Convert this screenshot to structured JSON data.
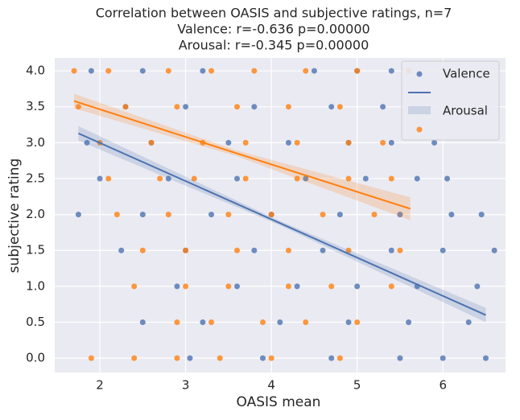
{
  "chart_data": {
    "type": "scatter",
    "title": "Correlation between OASIS and subjective ratings, n=7",
    "subtitle": [
      "Valence: r=-0.636 p=0.00000",
      "Arousal: r=-0.345 p=0.00000"
    ],
    "x_label": "OASIS mean",
    "y_label": "subjective rating",
    "xlim": [
      1.474,
      6.73
    ],
    "ylim": [
      -0.2,
      4.18
    ],
    "xticks": [
      2,
      3,
      4,
      5,
      6
    ],
    "yticks": [
      {
        "value": 0,
        "label": "0.0"
      },
      {
        "value": 0.5,
        "label": "0.5"
      },
      {
        "value": 1,
        "label": "1.0"
      },
      {
        "value": 1.5,
        "label": "1.5"
      },
      {
        "value": 2,
        "label": "2.0"
      },
      {
        "value": 2.5,
        "label": "2.5"
      },
      {
        "value": 3,
        "label": "3.0"
      },
      {
        "value": 3.5,
        "label": "3.5"
      },
      {
        "value": 4,
        "label": "4.0"
      }
    ],
    "grid": true,
    "legend": "upper right",
    "series": [
      {
        "name": "Valence",
        "color": "#4c72b0",
        "x": [
          1.9,
          2.5,
          3.2,
          4.5,
          5.0,
          5.4,
          2.3,
          3.0,
          3.8,
          4.7,
          5.3,
          1.85,
          2.6,
          3.5,
          4.2,
          4.9,
          5.4,
          5.9,
          2.0,
          2.8,
          3.6,
          4.4,
          5.1,
          5.7,
          6.05,
          1.75,
          2.5,
          3.3,
          4.0,
          4.8,
          5.5,
          6.1,
          6.45,
          2.25,
          3.0,
          3.8,
          4.6,
          5.4,
          6.0,
          6.6,
          2.9,
          3.6,
          4.3,
          5.0,
          5.7,
          6.4,
          2.5,
          3.2,
          4.1,
          4.9,
          5.6,
          6.3,
          3.05,
          3.9,
          4.7,
          5.5,
          6.0,
          6.5
        ],
        "y": [
          4,
          4,
          4,
          4,
          4,
          4,
          3.5,
          3.5,
          3.5,
          3.5,
          3.5,
          3,
          3,
          3,
          3,
          3,
          3,
          3,
          2.5,
          2.5,
          2.5,
          2.5,
          2.5,
          2.5,
          2.5,
          2,
          2,
          2,
          2,
          2,
          2,
          2,
          2,
          1.5,
          1.5,
          1.5,
          1.5,
          1.5,
          1.5,
          1.5,
          1,
          1,
          1,
          1,
          1,
          1,
          0.5,
          0.5,
          0.5,
          0.5,
          0.5,
          0.5,
          0,
          0,
          0,
          0,
          0,
          0
        ],
        "fit": {
          "x": [
            1.75,
            4.1,
            6.5
          ],
          "y": [
            3.13,
            1.88,
            0.6
          ],
          "y_low": [
            3.03,
            1.85,
            0.5
          ],
          "y_high": [
            3.23,
            1.91,
            0.7
          ]
        }
      },
      {
        "name": "Arousal",
        "color": "#ff7f0e",
        "x": [
          1.7,
          2.1,
          2.8,
          3.3,
          3.8,
          4.4,
          5.0,
          5.6,
          1.75,
          2.3,
          2.9,
          3.6,
          4.2,
          4.8,
          2.0,
          2.6,
          3.2,
          3.7,
          4.3,
          4.9,
          5.3,
          2.1,
          2.7,
          3.1,
          3.7,
          4.3,
          4.9,
          5.4,
          2.2,
          2.8,
          3.5,
          4.0,
          4.6,
          5.2,
          2.5,
          3.0,
          3.6,
          4.2,
          4.9,
          5.5,
          2.4,
          3.0,
          3.5,
          4.2,
          4.7,
          5.4,
          2.9,
          3.3,
          3.9,
          4.4,
          5.0,
          1.9,
          2.4,
          2.9,
          3.4,
          4.0,
          4.8
        ],
        "y": [
          4,
          4,
          4,
          4,
          4,
          4,
          4,
          4,
          3.5,
          3.5,
          3.5,
          3.5,
          3.5,
          3.5,
          3,
          3,
          3,
          3,
          3,
          3,
          3,
          2.5,
          2.5,
          2.5,
          2.5,
          2.5,
          2.5,
          2.5,
          2,
          2,
          2,
          2,
          2,
          2,
          1.5,
          1.5,
          1.5,
          1.5,
          1.5,
          1.5,
          1,
          1,
          1,
          1,
          1,
          1,
          0.5,
          0.5,
          0.5,
          0.5,
          0.5,
          0,
          0,
          0,
          0,
          0,
          0
        ],
        "fit": {
          "x": [
            1.7,
            3.6,
            5.62
          ],
          "y": [
            3.58,
            2.85,
            2.08
          ],
          "y_low": [
            3.48,
            2.81,
            1.92
          ],
          "y_high": [
            3.68,
            2.89,
            2.24
          ]
        }
      }
    ]
  }
}
